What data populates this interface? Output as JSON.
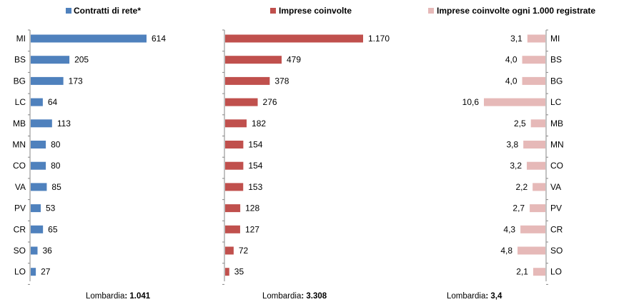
{
  "chart_data": [
    {
      "type": "bar",
      "orientation": "horizontal",
      "series": [
        {
          "name": "Contratti di rete*",
          "values": [
            614,
            205,
            173,
            64,
            113,
            80,
            80,
            85,
            53,
            65,
            36,
            27
          ]
        }
      ],
      "categories": [
        "MI",
        "BS",
        "BG",
        "LC",
        "MB",
        "MN",
        "CO",
        "VA",
        "PV",
        "CR",
        "SO",
        "LO"
      ],
      "value_labels": [
        "614",
        "205",
        "173",
        "64",
        "113",
        "80",
        "80",
        "85",
        "53",
        "65",
        "36",
        "27"
      ],
      "color": "#4f81bd",
      "xlim": [
        0,
        614
      ],
      "footer_prefix": "Lombardia",
      "footer_value": ": 1.041",
      "legend_position": "top"
    },
    {
      "type": "bar",
      "orientation": "horizontal",
      "series": [
        {
          "name": "Imprese coinvolte",
          "values": [
            1170,
            479,
            378,
            276,
            182,
            154,
            154,
            153,
            128,
            127,
            72,
            35
          ]
        }
      ],
      "categories": [
        "MI",
        "BS",
        "BG",
        "LC",
        "MB",
        "MN",
        "CO",
        "VA",
        "PV",
        "CR",
        "SO",
        "LO"
      ],
      "value_labels": [
        "1.170",
        "479",
        "378",
        "276",
        "182",
        "154",
        "154",
        "153",
        "128",
        "127",
        "72",
        "35"
      ],
      "color": "#c0504d",
      "xlim": [
        0,
        1170
      ],
      "footer_prefix": "Lombardia",
      "footer_value": ": 3.308",
      "legend_position": "top"
    },
    {
      "type": "bar",
      "orientation": "horizontal",
      "direction": "right-to-left",
      "series": [
        {
          "name": "Imprese coinvolte ogni 1.000 registrate",
          "values": [
            3.1,
            4.0,
            4.0,
            10.6,
            2.5,
            3.8,
            3.2,
            2.2,
            2.7,
            4.3,
            4.8,
            2.1
          ]
        }
      ],
      "categories": [
        "MI",
        "BS",
        "BG",
        "LC",
        "MB",
        "MN",
        "CO",
        "VA",
        "PV",
        "CR",
        "SO",
        "LO"
      ],
      "value_labels": [
        "3,1",
        "4,0",
        "4,0",
        "10,6",
        "2,5",
        "3,8",
        "3,2",
        "2,2",
        "2,7",
        "4,3",
        "4,8",
        "2,1"
      ],
      "color": "#e6b9b8",
      "xlim": [
        0,
        10.6
      ],
      "footer_prefix": "Lombardia",
      "footer_value": ": 3,4",
      "legend_position": "top"
    }
  ]
}
